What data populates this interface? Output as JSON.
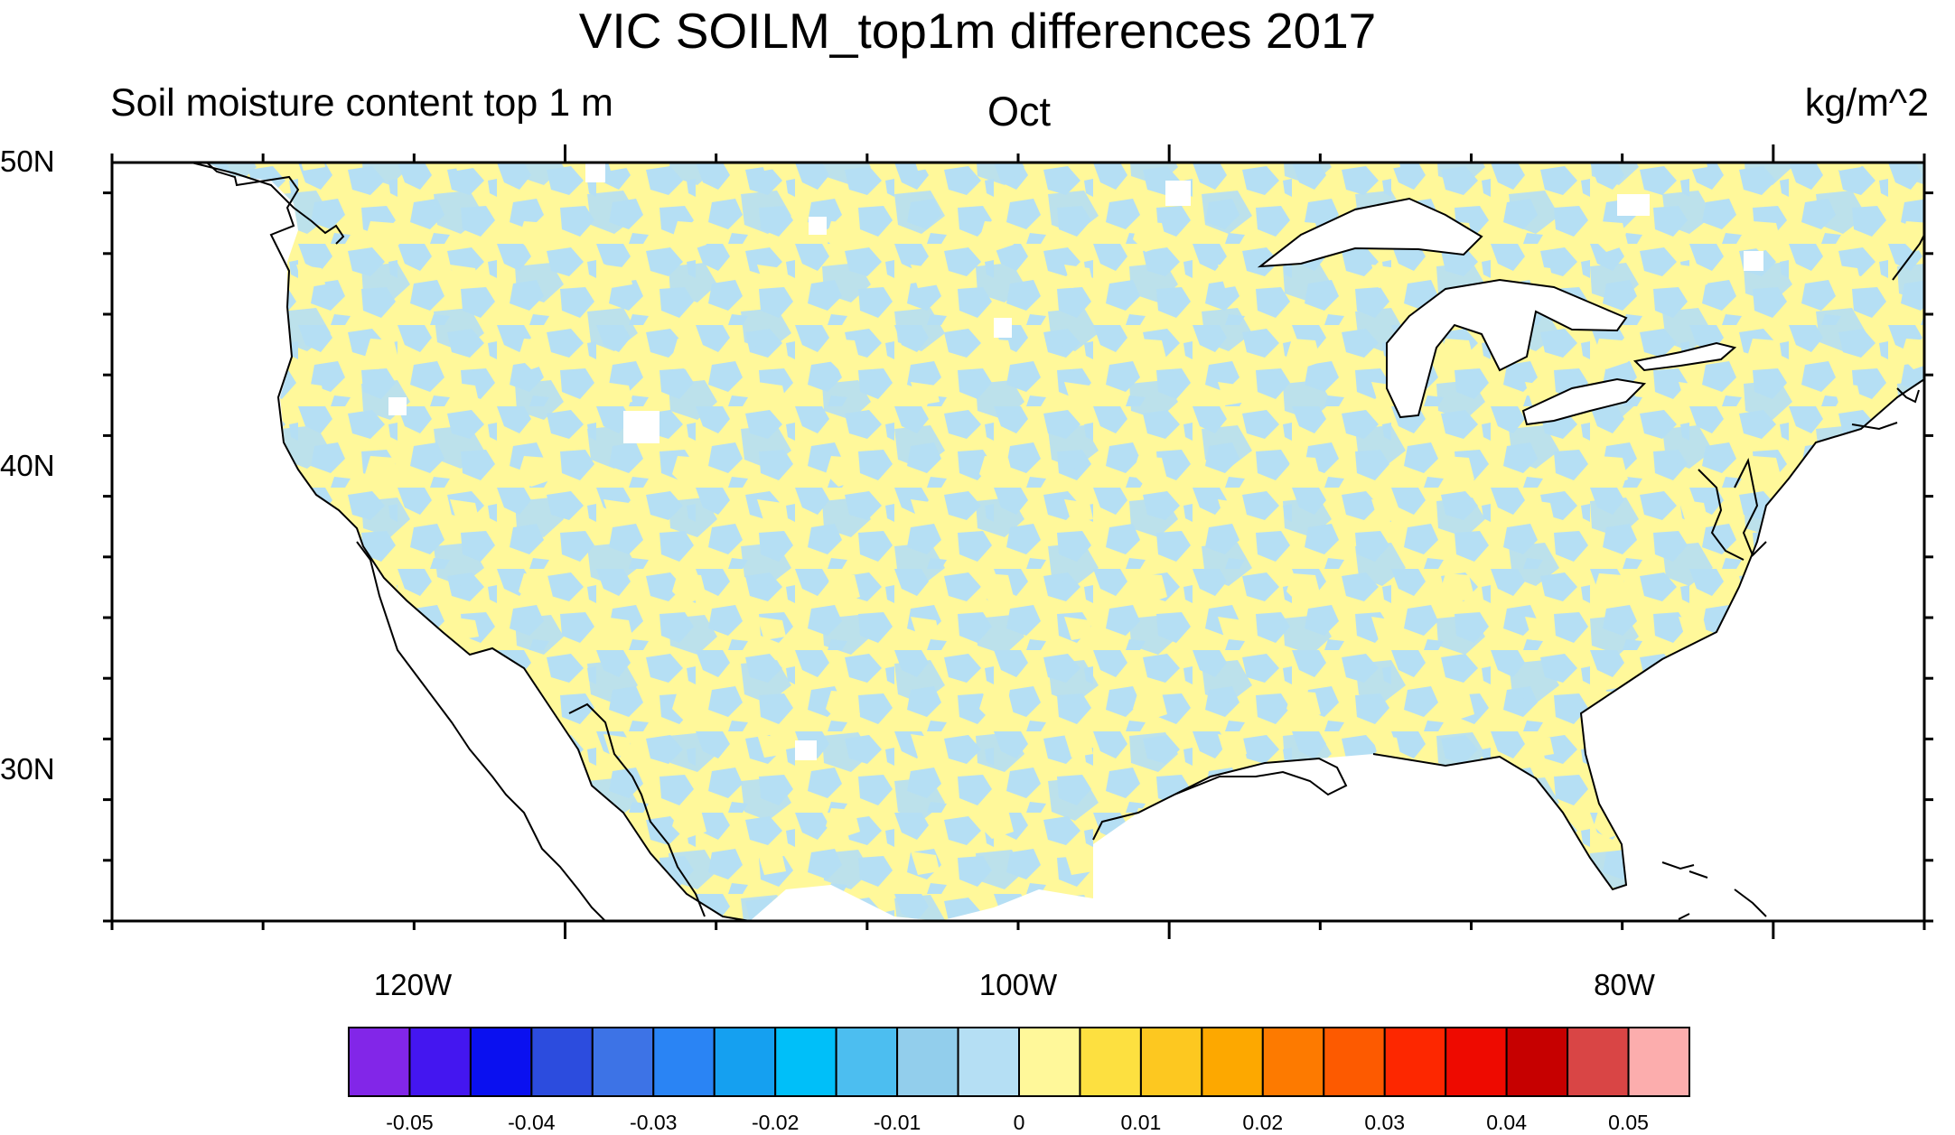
{
  "title": "VIC SOILM_top1m differences 2017",
  "left_string": "Soil moisture content top 1 m",
  "center_string": "Oct",
  "right_string": "kg/m^2",
  "map": {
    "projection": "cylindrical-equidistant",
    "lon_range": [
      -135,
      -75
    ],
    "lat_range": [
      25,
      50
    ],
    "lat_labels": [
      "50N",
      "40N",
      "30N"
    ],
    "lon_labels": [
      "120W",
      "100W",
      "80W"
    ],
    "field_pattern": "mottled mix of the '0' class (light blue) and the '0.005' interval (pale yellow) over the contiguous United States land area",
    "dominant_colors": {
      "negative_small": "#B5DFF4",
      "positive_small": "#FFF89A",
      "missing": "#FFFFFF"
    },
    "outline_color": "#000000"
  },
  "colorbar": {
    "labels": [
      "-0.05",
      "-0.04",
      "-0.03",
      "-0.02",
      "-0.01",
      "0",
      "0.01",
      "0.02",
      "0.03",
      "0.04",
      "0.05"
    ],
    "colors": [
      "#8226E8",
      "#4416F0",
      "#0A10F0",
      "#2C4CDE",
      "#3D73E6",
      "#2A84F4",
      "#15A0F0",
      "#00BFF9",
      "#4CBEF0",
      "#92CEEC",
      "#B5DFF4",
      "#FFF89A",
      "#FDE040",
      "#FDC820",
      "#FDA800",
      "#FD7A00",
      "#FD5A00",
      "#FD2700",
      "#EE0A00",
      "#C60000",
      "#D94545",
      "#FCADAD"
    ]
  }
}
